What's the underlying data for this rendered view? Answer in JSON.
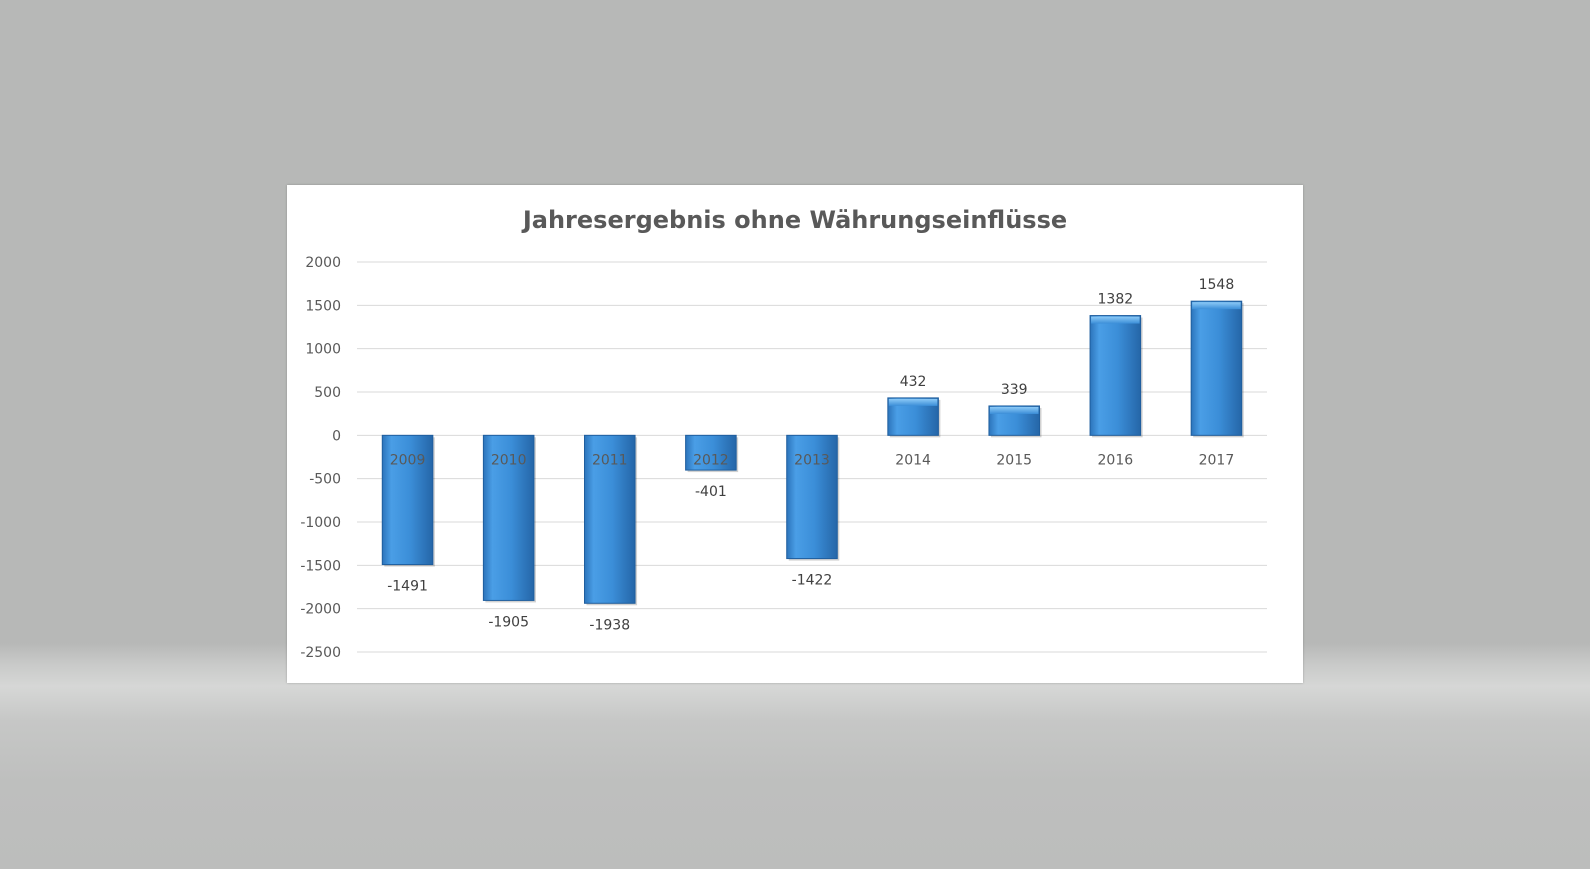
{
  "chart_data": {
    "type": "bar",
    "title": "Jahresergebnis ohne Währungseinflüsse",
    "xlabel": "",
    "ylabel": "",
    "categories": [
      "2009",
      "2010",
      "2011",
      "2012",
      "2013",
      "2014",
      "2015",
      "2016",
      "2017"
    ],
    "values": [
      -1491,
      -1905,
      -1938,
      -401,
      -1422,
      432,
      339,
      1382,
      1548
    ],
    "data_labels": [
      "-1491",
      "-1905",
      "-1938",
      "-401",
      "-1422",
      "432",
      "339",
      "1382",
      "1548"
    ],
    "ylim": [
      -2500,
      2000
    ],
    "yticks": [
      2000,
      1500,
      1000,
      500,
      0,
      -500,
      -1000,
      -1500,
      -2000,
      -2500
    ],
    "ytick_labels": [
      "2000",
      "1500",
      "1000",
      "500",
      "0",
      "-500",
      "-1000",
      "-1500",
      "-2000",
      "-2500"
    ],
    "grid": true,
    "legend": "none",
    "bar_color": "#3d8fd6"
  }
}
